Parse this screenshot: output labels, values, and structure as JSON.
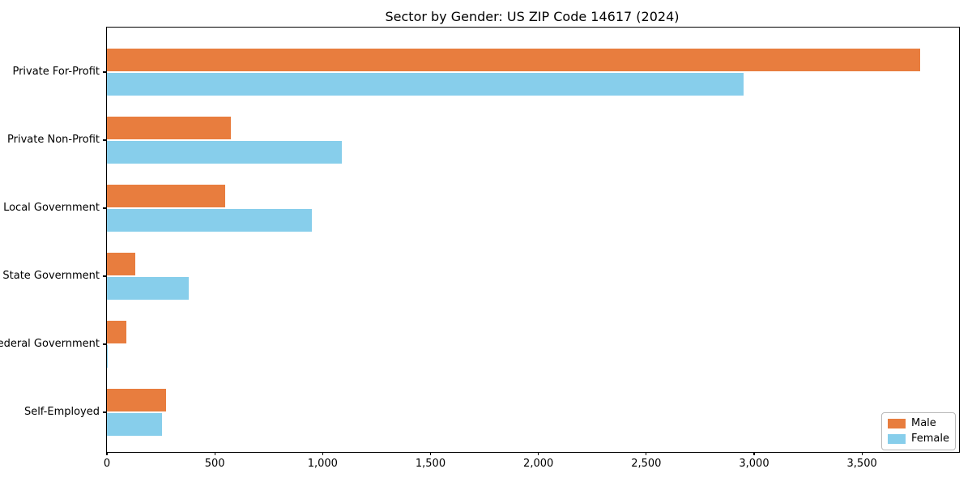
{
  "chart_data": {
    "type": "bar",
    "orientation": "horizontal",
    "title": "Sector by Gender: US ZIP Code 14617 (2024)",
    "categories": [
      "Private For-Profit",
      "Private Non-Profit",
      "Local Government",
      "State Government",
      "Federal Government",
      "Self-Employed"
    ],
    "series": [
      {
        "name": "Male",
        "color": "#e87d3e",
        "values": [
          3770,
          575,
          550,
          130,
          90,
          275
        ]
      },
      {
        "name": "Female",
        "color": "#87ceeb",
        "values": [
          2950,
          1090,
          950,
          380,
          5,
          255
        ]
      }
    ],
    "xlabel": "",
    "ylabel": "",
    "xlim": [
      0,
      3950
    ],
    "xticks": [
      {
        "label": "0",
        "value": 0
      },
      {
        "label": "500",
        "value": 500
      },
      {
        "label": "1,000",
        "value": 1000
      },
      {
        "label": "1,500",
        "value": 1500
      },
      {
        "label": "2,000",
        "value": 2000
      },
      {
        "label": "2,500",
        "value": 2500
      },
      {
        "label": "3,000",
        "value": 3000
      },
      {
        "label": "3,500",
        "value": 3500
      }
    ],
    "grid": false,
    "legend_position": "lower right",
    "colors": {
      "spine": "#000000",
      "text": "#000000",
      "background": "#ffffff"
    }
  }
}
